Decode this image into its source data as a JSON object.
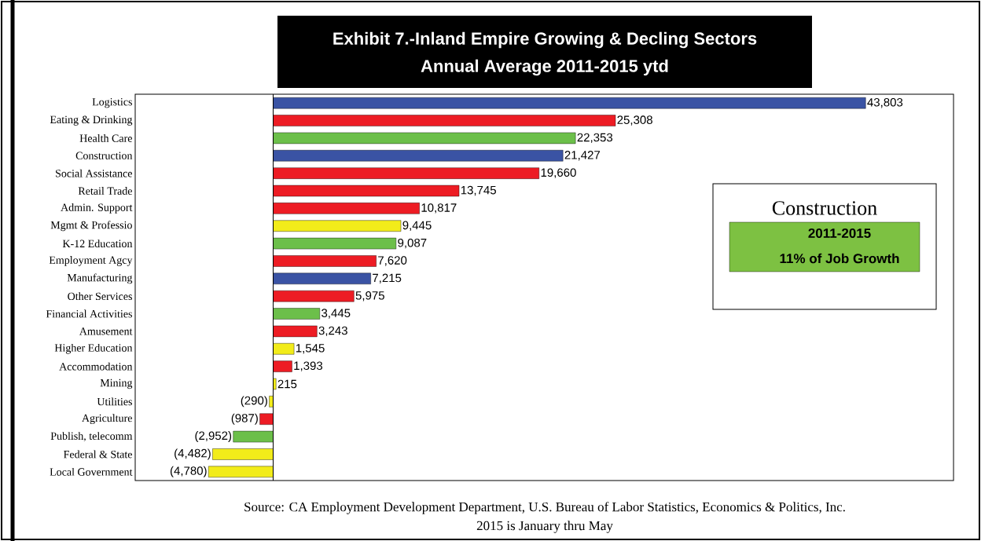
{
  "chart_data": {
    "type": "bar",
    "orientation": "horizontal",
    "title": "Exhibit 7.-Inland Empire Growing & Decling Sectors",
    "subtitle": "Annual Average 2011-2015 ytd",
    "categories": [
      "Logistics",
      "Eating & Drinking",
      "Health Care",
      "Construction",
      "Social Assistance",
      "Retail Trade",
      "Admin. Support",
      "Mgmt & Professio",
      "K-12 Education",
      "Employment Agcy",
      "Manufacturing",
      "Other Services",
      "Financial Activities",
      "Amusement",
      "Higher Education",
      "Accommodation",
      "Mining",
      "Utilities",
      "Agriculture",
      "Publish, telecomm",
      "Federal & State",
      "Local Government"
    ],
    "values": [
      43803,
      25308,
      22353,
      21427,
      19660,
      13745,
      10817,
      9445,
      9087,
      7620,
      7215,
      5975,
      3445,
      3243,
      1545,
      1393,
      215,
      -290,
      -987,
      -2952,
      -4482,
      -4780
    ],
    "value_labels": [
      "43,803",
      "25,308",
      "22,353",
      "21,427",
      "19,660",
      "13,745",
      "10,817",
      "9,445",
      "9,087",
      "7,620",
      "7,215",
      "5,975",
      "3,445",
      "3,243",
      "1,545",
      "1,393",
      "215",
      "(290)",
      "(987)",
      "(2,952)",
      "(4,482)",
      "(4,780)"
    ],
    "colors": [
      "#3a53a4",
      "#ed1c24",
      "#6cbf4a",
      "#3a53a4",
      "#ed1c24",
      "#ed1c24",
      "#ed1c24",
      "#f2ec1a",
      "#6cbf4a",
      "#ed1c24",
      "#3a53a4",
      "#ed1c24",
      "#6cbf4a",
      "#ed1c24",
      "#f2ec1a",
      "#ed1c24",
      "#f2ec1a",
      "#f2ec1a",
      "#ed1c24",
      "#6cbf4a",
      "#f2ec1a",
      "#f2ec1a"
    ],
    "xlim": [
      -10200,
      50300
    ],
    "tick_labels": "y",
    "annotations": [
      "Construction",
      "2011-2015",
      "11% of Job Growth",
      "Source:  CA Employment Development Department, U.S. Bureau of Labor Statistics, Economics & Politics, Inc.",
      "2015 is January thru May"
    ]
  }
}
